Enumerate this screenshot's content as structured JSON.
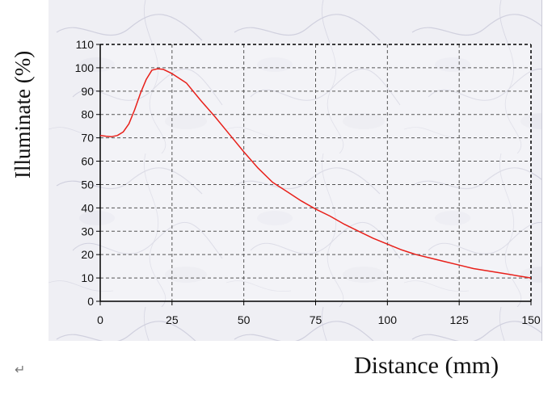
{
  "chart_data": {
    "type": "line",
    "xlabel": "Distance (mm)",
    "ylabel": "Illuminate (%)",
    "xlim": [
      0,
      150
    ],
    "ylim": [
      0,
      110
    ],
    "xticks": [
      0,
      25,
      50,
      75,
      100,
      125,
      150
    ],
    "yticks": [
      0,
      10,
      20,
      30,
      40,
      50,
      60,
      70,
      80,
      90,
      100,
      110
    ],
    "grid": true,
    "series": [
      {
        "color": "#e8201a",
        "points": [
          [
            0,
            71
          ],
          [
            2,
            70.7
          ],
          [
            4,
            70.5
          ],
          [
            6,
            71
          ],
          [
            8,
            72.5
          ],
          [
            10,
            76
          ],
          [
            12,
            82
          ],
          [
            14,
            89
          ],
          [
            16,
            95
          ],
          [
            18,
            99
          ],
          [
            20,
            99.6
          ],
          [
            22,
            99.3
          ],
          [
            25,
            97.5
          ],
          [
            30,
            93.5
          ],
          [
            35,
            86
          ],
          [
            40,
            79
          ],
          [
            45,
            71.5
          ],
          [
            50,
            64
          ],
          [
            55,
            57
          ],
          [
            60,
            51
          ],
          [
            65,
            47
          ],
          [
            70,
            43
          ],
          [
            75,
            39.5
          ],
          [
            80,
            36.5
          ],
          [
            85,
            33
          ],
          [
            90,
            30
          ],
          [
            95,
            27
          ],
          [
            100,
            24.5
          ],
          [
            105,
            22
          ],
          [
            110,
            20
          ],
          [
            115,
            18.5
          ],
          [
            120,
            17
          ],
          [
            125,
            15.5
          ],
          [
            130,
            14
          ],
          [
            135,
            13
          ],
          [
            140,
            12
          ],
          [
            145,
            11
          ],
          [
            150,
            10
          ]
        ]
      }
    ]
  },
  "para_mark": "↵"
}
